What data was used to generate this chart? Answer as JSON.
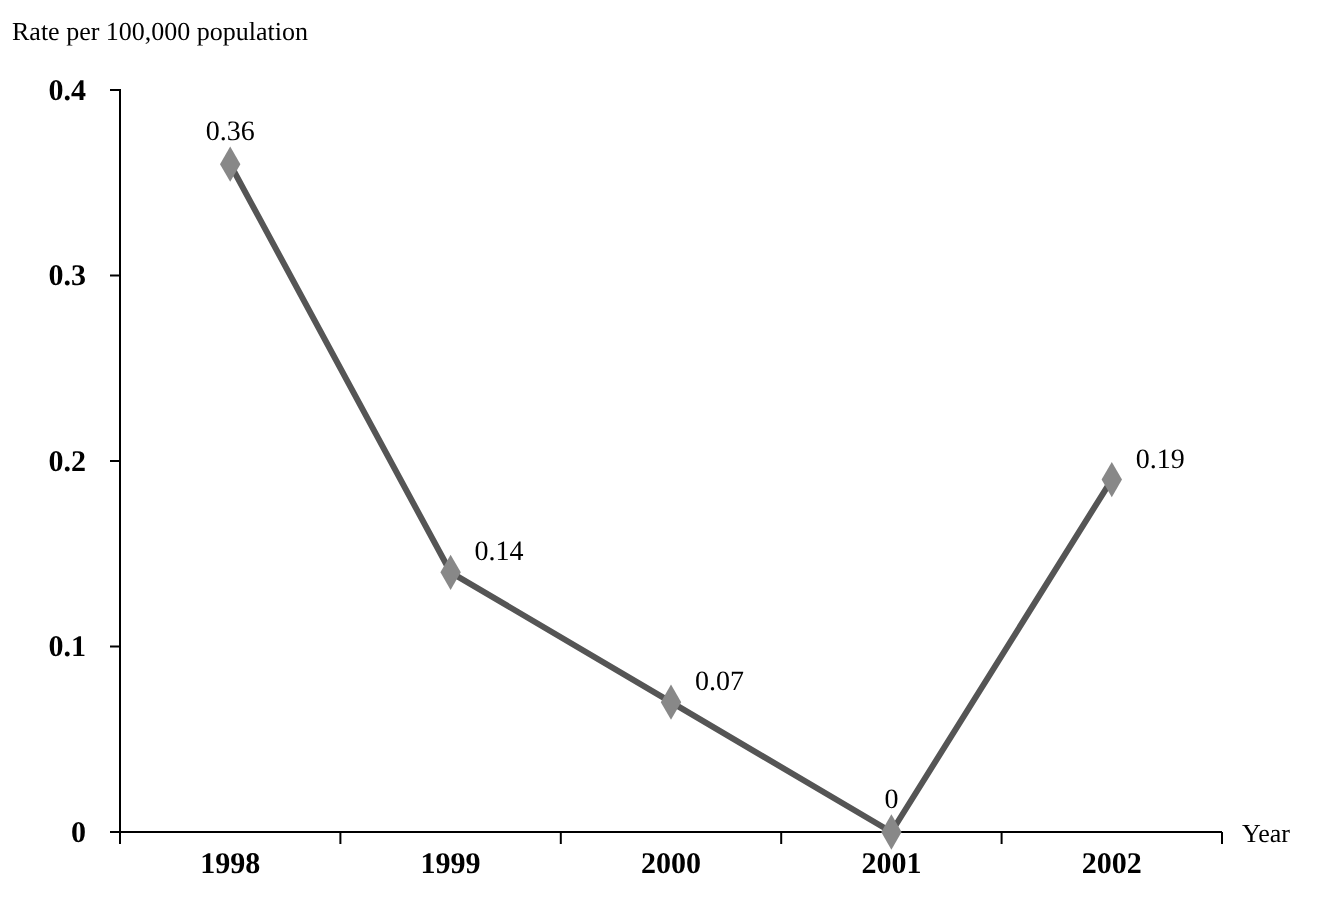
{
  "chart_data": {
    "type": "line",
    "ylabel": "Rate per 100,000 population",
    "xlabel": "Year",
    "categories": [
      "1998",
      "1999",
      "2000",
      "2001",
      "2002"
    ],
    "series": [
      {
        "color": "#555555",
        "values": [
          0.36,
          0.14,
          0.07,
          0,
          0.19
        ]
      }
    ],
    "ylim": [
      0,
      0.4
    ],
    "yticks": [
      0,
      0.1,
      0.2,
      0.3,
      0.4
    ],
    "marker": "diamond",
    "line_style": "solid",
    "data_labels": true
  }
}
